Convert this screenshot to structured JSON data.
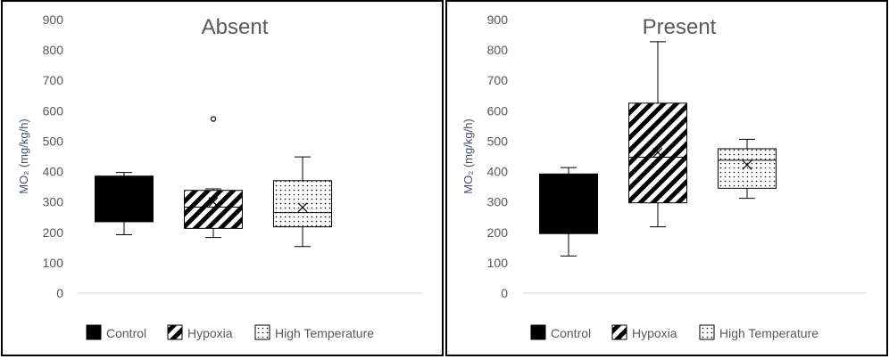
{
  "colors": {
    "axis_text": "#595959",
    "ylabel_text": "#44546A",
    "box_outline": "#000000",
    "axis_line": "#D9D9D9"
  },
  "chart_data": [
    {
      "type": "box",
      "title": "Absent",
      "ylabel": "MO₂ (mg/kg/h)",
      "ylim": [
        0,
        900
      ],
      "yticks": [
        0,
        100,
        200,
        300,
        400,
        500,
        600,
        700,
        800,
        900
      ],
      "legend": {
        "position": "bottom",
        "entries": [
          "Control",
          "Hypoxia",
          "High Temperature"
        ]
      },
      "series": [
        {
          "name": "Control",
          "pattern": "solid",
          "whisker_low": 192,
          "q1": 235,
          "median": 235,
          "q3": 385,
          "whisker_high": 397,
          "mean": null,
          "outliers": []
        },
        {
          "name": "Hypoxia",
          "pattern": "diagonal",
          "whisker_low": 183,
          "q1": 213,
          "median": 283,
          "q3": 338,
          "whisker_high": 343,
          "mean": 300,
          "outliers": [
            573
          ]
        },
        {
          "name": "High Temperature",
          "pattern": "dots",
          "whisker_low": 153,
          "q1": 218,
          "median": 265,
          "q3": 370,
          "whisker_high": 448,
          "mean": 282,
          "outliers": []
        }
      ]
    },
    {
      "type": "box",
      "title": "Present",
      "ylabel": "MO₂ (mg/kg/h)",
      "ylim": [
        0,
        900
      ],
      "yticks": [
        0,
        100,
        200,
        300,
        400,
        500,
        600,
        700,
        800,
        900
      ],
      "legend": {
        "position": "bottom",
        "entries": [
          "Control",
          "Hypoxia",
          "High Temperature"
        ]
      },
      "series": [
        {
          "name": "Control",
          "pattern": "solid",
          "whisker_low": 122,
          "q1": 196,
          "median": 196,
          "q3": 392,
          "whisker_high": 413,
          "mean": null,
          "outliers": []
        },
        {
          "name": "Hypoxia",
          "pattern": "diagonal",
          "whisker_low": 218,
          "q1": 297,
          "median": 447,
          "q3": 625,
          "whisker_high": 827,
          "mean": 463,
          "outliers": []
        },
        {
          "name": "High Temperature",
          "pattern": "dots",
          "whisker_low": 312,
          "q1": 345,
          "median": 437,
          "q3": 475,
          "whisker_high": 506,
          "mean": 422,
          "outliers": []
        }
      ]
    }
  ]
}
